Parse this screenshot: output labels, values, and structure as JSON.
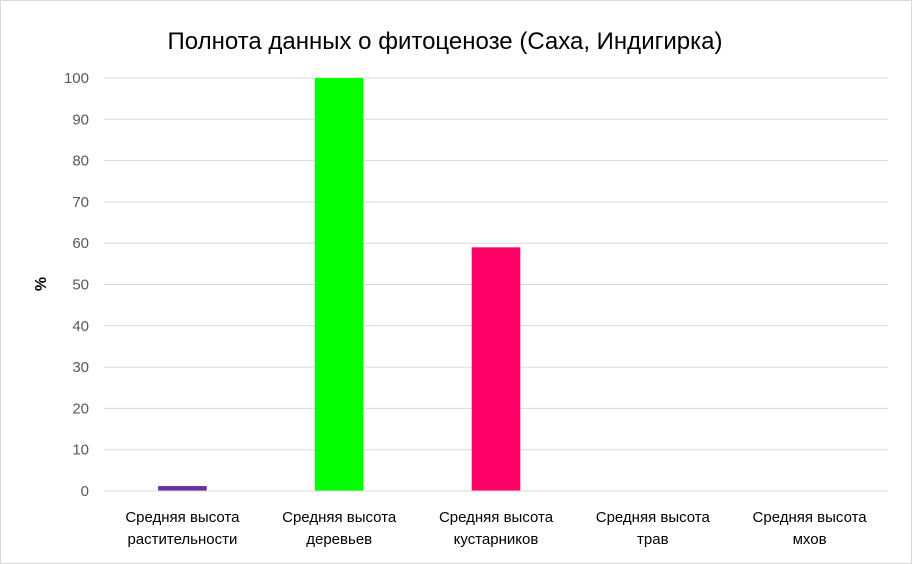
{
  "chart_data": {
    "type": "bar",
    "title": "Полнота данных о фитоценозе (Саха, Индигирка)",
    "xlabel": "",
    "ylabel": "%",
    "ylim": [
      0,
      100
    ],
    "yticks": [
      0,
      10,
      20,
      30,
      40,
      50,
      60,
      70,
      80,
      90,
      100
    ],
    "grid": true,
    "legend": "none",
    "categories": [
      [
        "Средняя высота",
        "растительности"
      ],
      [
        "Средняя высота",
        "деревьев"
      ],
      [
        "Средняя высота",
        "кустарников"
      ],
      [
        "Средняя высота",
        "трав"
      ],
      [
        "Средняя высота",
        "мхов"
      ]
    ],
    "values": [
      1.2,
      100,
      59,
      0,
      0
    ],
    "colors": [
      "#7030a0",
      "#00ff00",
      "#ff0066",
      "#7030a0",
      "#7030a0"
    ]
  }
}
